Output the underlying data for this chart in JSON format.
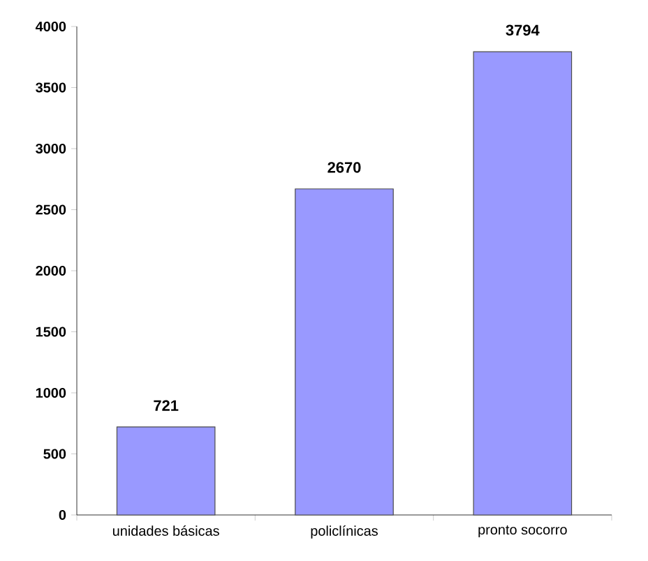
{
  "chart_data": {
    "type": "bar",
    "categories": [
      "unidades básicas",
      "policlínicas",
      "pronto socorro"
    ],
    "values": [
      721,
      2670,
      3794
    ],
    "color": "#9999ff",
    "ylim": [
      0,
      4000
    ],
    "yticks": [
      0,
      500,
      1000,
      1500,
      2000,
      2500,
      3000,
      3500,
      4000
    ],
    "data_labels": true,
    "grid": false
  }
}
